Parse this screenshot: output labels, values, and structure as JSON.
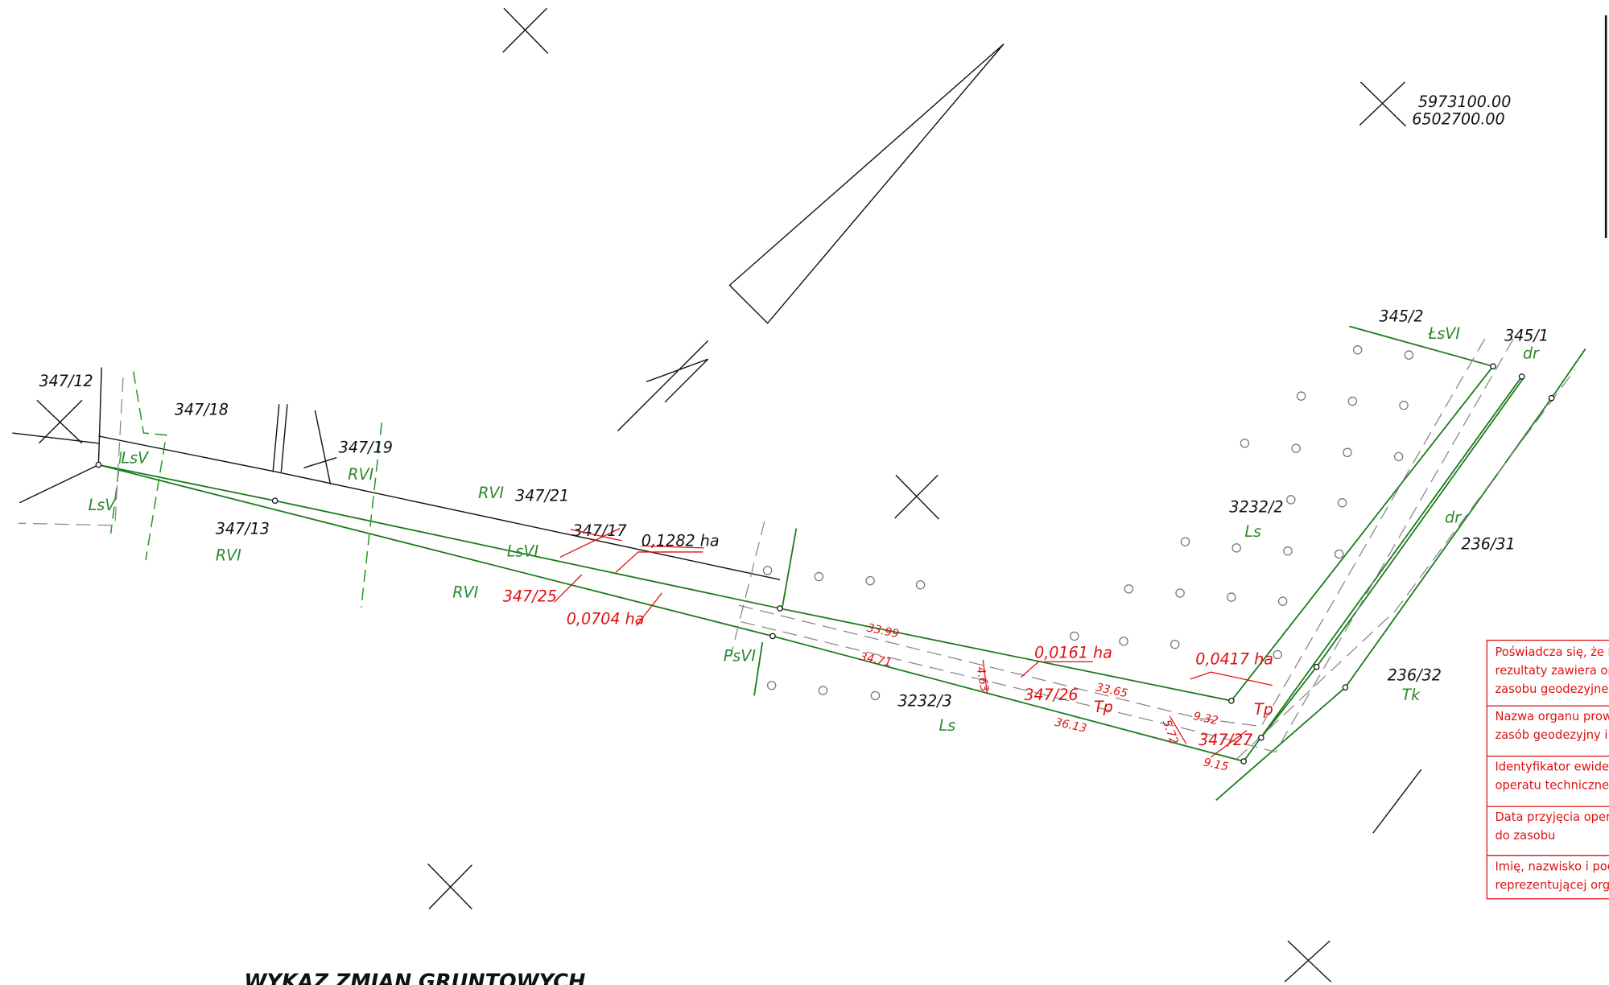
{
  "title": "WYKAZ ZMIAN GRUNTOWYCH",
  "coordinates": [
    "5973100.00",
    "6502700.00"
  ],
  "parcels": [
    "347/12",
    "347/18",
    "347/19",
    "347/21",
    "347/13",
    "3232/2",
    "345/2",
    "345/1",
    "236/31",
    "236/32",
    "3232/3",
    "347/17",
    "0,1282 ha"
  ],
  "land_use": [
    "LsV",
    "LsV",
    "RVI",
    "RVI",
    "RVI",
    "LsVI",
    "RVI",
    "PsVI",
    "Ls",
    "Ls",
    "ŁsVI",
    "dr",
    "dr",
    "Tk",
    "Tp",
    "Tp"
  ],
  "changes": [
    "347/25",
    "0,0704 ha",
    "0,0161 ha",
    "347/26",
    "0,0417 ha",
    "347/27"
  ],
  "dimensions": [
    "33.99",
    "34.71",
    "4.63",
    "33.65",
    "36.13",
    "9.32",
    "5.72",
    "9.15"
  ],
  "certificate": [
    [
      "Poświadcza się, że n",
      "rezultaty zawiera ope",
      "zasobu geodezyjnego"
    ],
    [
      "Nazwa organu prowa",
      "zasób geodezyjny i ka"
    ],
    [
      "Identyfikator ewidency",
      "operatu technicznego"
    ],
    [
      "Data przyjęcia operat",
      "do zasobu"
    ],
    [
      "Imię, nazwisko i podp",
      "reprezentującej organ"
    ]
  ]
}
